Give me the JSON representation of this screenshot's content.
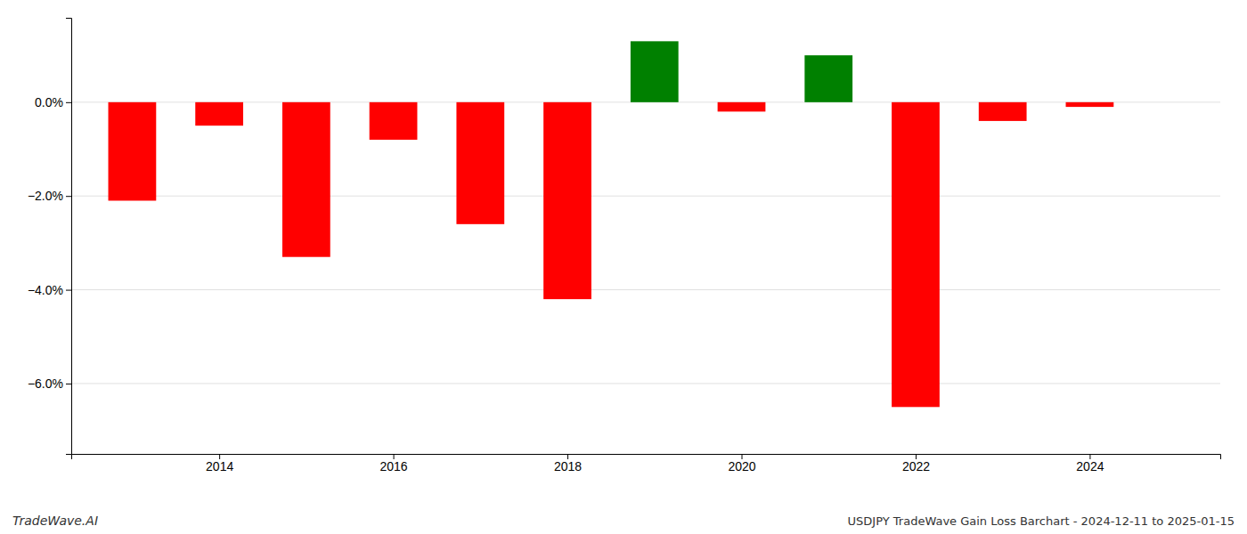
{
  "chart_data": {
    "type": "bar",
    "title": "USDJPY TradeWave Gain Loss Barchart - 2024-12-11 to 2025-01-15",
    "annotations": [
      "TradeWave.AI"
    ],
    "x": [
      2013,
      2014,
      2015,
      2016,
      2017,
      2018,
      2019,
      2020,
      2021,
      2022,
      2023,
      2024
    ],
    "values": [
      -0.021,
      -0.005,
      -0.033,
      -0.008,
      -0.026,
      -0.042,
      0.013,
      -0.002,
      0.01,
      -0.065,
      -0.004,
      -0.001
    ],
    "colors": [
      "#ff0000",
      "#ff0000",
      "#ff0000",
      "#ff0000",
      "#ff0000",
      "#ff0000",
      "#008000",
      "#ff0000",
      "#008000",
      "#ff0000",
      "#ff0000",
      "#ff0000"
    ],
    "xlim": [
      2012.3,
      2025.5
    ],
    "xticks": [
      2014,
      2016,
      2018,
      2020,
      2022,
      2024
    ],
    "ylim": [
      -0.075,
      0.018
    ],
    "yticks": [
      {
        "value": -0.06,
        "label": "−6.0%"
      },
      {
        "value": -0.04,
        "label": "−4.0%"
      },
      {
        "value": -0.02,
        "label": "−2.0%"
      },
      {
        "value": 0.0,
        "label": "0.0%"
      }
    ],
    "grid": true
  }
}
